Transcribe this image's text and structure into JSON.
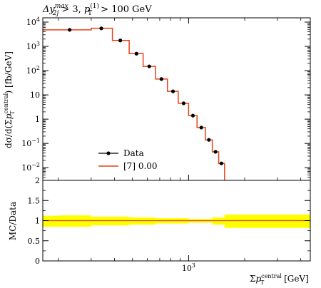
{
  "chart_data": [
    {
      "type": "line",
      "title": "Δy_2j^max > 3, p_T^(1) > 100 GeV",
      "title_parts": {
        "dy": "Δy",
        "dy_sup": "max",
        "dy_sub": "2j",
        "cut1": " > 3, ",
        "pt": "p",
        "pt_sup": "(1)",
        "pt_sub": "T",
        "cut2": " > 100 GeV"
      },
      "ylabel": "dσ/d(Σp_T^central) [fb/GeV]",
      "ylabel_parts": {
        "a": "dσ/d(Σ",
        "p": "p",
        "sup": "central",
        "sub": "T",
        "b": ") [fb/GeV]"
      },
      "xlabel": "Σp_T^central [GeV]",
      "xlabel_parts": {
        "a": "Σ",
        "p": "p",
        "sup": "central",
        "sub": "T",
        "b": " [GeV]"
      },
      "x_scale": "log",
      "y_scale": "log",
      "xlim": [
        165,
        4500
      ],
      "ylim": [
        0.003,
        15000
      ],
      "y_ticks": [
        {
          "v": 0.01,
          "t": "10",
          "e": "−2"
        },
        {
          "v": 0.1,
          "t": "10",
          "e": "−1"
        },
        {
          "v": 1,
          "t": "1",
          "e": ""
        },
        {
          "v": 10,
          "t": "10",
          "e": ""
        },
        {
          "v": 100,
          "t": "10",
          "e": "2"
        },
        {
          "v": 1000,
          "t": "10",
          "e": "3"
        },
        {
          "v": 10000,
          "t": "10",
          "e": "4"
        }
      ],
      "legend_position": "bottom-left",
      "series": [
        {
          "name": "Data",
          "style": "points",
          "color": "#000000",
          "x": [
            230,
            340,
            430,
            525,
            615,
            715,
            825,
            940,
            1055,
            1170,
            1285,
            1395,
            1500
          ],
          "y": [
            4800,
            5500,
            1750,
            500,
            150,
            45,
            14,
            4.5,
            1.4,
            0.45,
            0.14,
            0.045,
            0.015
          ]
        },
        {
          "name": "[7] 0.00",
          "style": "step",
          "color": "#e8431a",
          "bins": [
            165,
            300,
            390,
            480,
            570,
            665,
            770,
            880,
            1000,
            1110,
            1230,
            1340,
            1450,
            1560
          ],
          "values": [
            4800,
            5600,
            1750,
            500,
            150,
            45,
            14,
            4.5,
            1.4,
            0.45,
            0.14,
            0.045,
            0.015
          ]
        }
      ]
    },
    {
      "type": "area",
      "ylabel": "MC/Data",
      "x_scale": "log",
      "xlim": [
        165,
        4500
      ],
      "ylim": [
        0,
        2
      ],
      "y_ticks": [
        "0",
        "0.5",
        "1",
        "1.5",
        "2"
      ],
      "x_ticks": [
        {
          "v": 1000,
          "t": "10",
          "e": "3"
        }
      ],
      "reference_line": 1,
      "band_color": "#ffff00",
      "bins": [
        165,
        200,
        300,
        480,
        665,
        1000,
        1340,
        1560,
        4500
      ],
      "band_lo": [
        0.85,
        0.85,
        0.88,
        0.9,
        0.93,
        0.95,
        0.9,
        0.82
      ],
      "band_hi": [
        1.12,
        1.13,
        1.1,
        1.08,
        1.06,
        1.04,
        1.08,
        1.15
      ],
      "ratio": [
        1.0,
        1.0,
        1.0,
        1.0,
        1.0,
        1.0,
        1.0,
        1.0
      ]
    }
  ]
}
